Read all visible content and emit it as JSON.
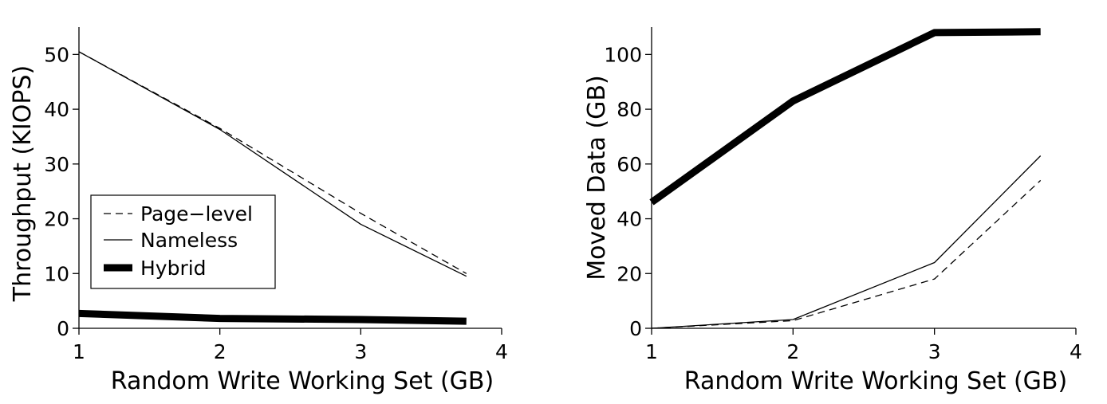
{
  "chart_data": [
    {
      "type": "line",
      "xlabel": "Random Write Working Set (GB)",
      "ylabel": "Throughput (KIOPS)",
      "xlim": [
        1,
        4
      ],
      "ylim": [
        0,
        55
      ],
      "xticks": [
        1,
        2,
        3,
        4
      ],
      "yticks": [
        0,
        10,
        20,
        30,
        40,
        50
      ],
      "grid": false,
      "legend": "lower-left",
      "series": [
        {
          "name": "Page−level",
          "style": "dashed",
          "color": "#000000",
          "x": [
            1,
            2,
            3,
            3.75
          ],
          "y": [
            50.5,
            36.5,
            21,
            10
          ]
        },
        {
          "name": "Nameless",
          "style": "solid-thin",
          "color": "#000000",
          "x": [
            1,
            2,
            3,
            3.75
          ],
          "y": [
            50.5,
            36.3,
            19,
            9.5
          ]
        },
        {
          "name": "Hybrid",
          "style": "solid-thick",
          "color": "#000000",
          "x": [
            1,
            2,
            3,
            3.75
          ],
          "y": [
            2.7,
            1.8,
            1.6,
            1.3
          ]
        }
      ]
    },
    {
      "type": "line",
      "xlabel": "Random Write Working Set (GB)",
      "ylabel": "Moved Data (GB)",
      "xlim": [
        1,
        4
      ],
      "ylim": [
        0,
        110
      ],
      "xticks": [
        1,
        2,
        3,
        4
      ],
      "yticks": [
        0,
        20,
        40,
        60,
        80,
        100
      ],
      "grid": false,
      "series": [
        {
          "name": "Page−level",
          "style": "dashed",
          "color": "#000000",
          "x": [
            1,
            2,
            3,
            3.75
          ],
          "y": [
            0,
            2.8,
            18,
            54
          ]
        },
        {
          "name": "Nameless",
          "style": "solid-thin",
          "color": "#000000",
          "x": [
            1,
            2,
            3,
            3.75
          ],
          "y": [
            0,
            3.2,
            24,
            63
          ]
        },
        {
          "name": "Hybrid",
          "style": "solid-thick",
          "color": "#000000",
          "x": [
            1,
            2,
            3,
            3.75
          ],
          "y": [
            46,
            83,
            108,
            108.3
          ]
        }
      ]
    }
  ]
}
